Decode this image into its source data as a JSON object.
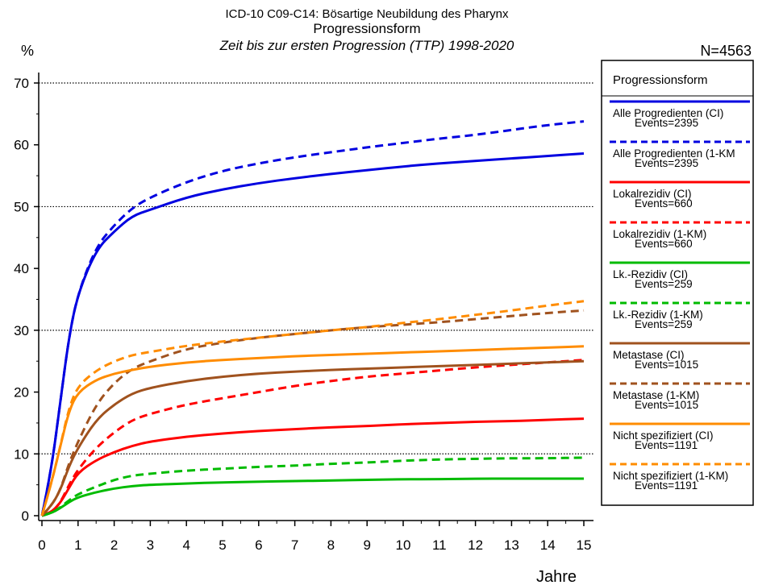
{
  "chart_data": {
    "type": "line",
    "title": "ICD-10 C09-C14: Bösartige Neubildung des Pharynx",
    "subtitle": "Progressionsform",
    "subtitle2": "Zeit bis zur ersten Progression (TTP) 1998-2020",
    "ylabel": "%",
    "xlabel": "Jahre",
    "n_label": "N=4563",
    "xlim": [
      0,
      15
    ],
    "ylim": [
      0,
      70
    ],
    "x_ticks": [
      "0",
      "1",
      "2",
      "3",
      "4",
      "5",
      "6",
      "7",
      "8",
      "9",
      "10",
      "11",
      "12",
      "13",
      "14",
      "15"
    ],
    "y_ticks": [
      "0",
      "10",
      "20",
      "30",
      "40",
      "50",
      "60",
      "70"
    ],
    "grid": "horizontal dotted at 10, 30, 50, 70",
    "legend_title": "Progressionsform",
    "legend_position": "right",
    "x": [
      0,
      0.25,
      0.5,
      0.75,
      1,
      1.5,
      2,
      2.5,
      3,
      4,
      5,
      6,
      7,
      8,
      9,
      10,
      11,
      12,
      13,
      14,
      15
    ],
    "series": [
      {
        "name": "Alle Progredienten (CI)",
        "events": "Events=2395",
        "color": "#0000e0",
        "dash": false,
        "values": [
          0,
          7,
          18,
          29,
          36,
          43,
          46,
          48.5,
          49.5,
          51.5,
          52.8,
          53.8,
          54.6,
          55.3,
          55.9,
          56.5,
          57,
          57.4,
          57.8,
          58.2,
          58.6
        ]
      },
      {
        "name": "Alle Progredienten (1-KM",
        "events": "Events=2395",
        "color": "#0000e0",
        "dash": true,
        "values": [
          0,
          7,
          18,
          29,
          36,
          43.5,
          47,
          49.8,
          51.5,
          54,
          55.8,
          57,
          58,
          58.8,
          59.6,
          60.3,
          61,
          61.6,
          62.4,
          63.2,
          63.8
        ]
      },
      {
        "name": "Lokalrezidiv (CI)",
        "events": "Events=660",
        "color": "#ff0000",
        "dash": false,
        "values": [
          0,
          0.5,
          2,
          4.5,
          7,
          9,
          10.3,
          11.3,
          12,
          12.8,
          13.3,
          13.7,
          14,
          14.3,
          14.5,
          14.8,
          15,
          15.2,
          15.3,
          15.5,
          15.7
        ]
      },
      {
        "name": "Lokalrezidiv (1-KM)",
        "events": "Events=660",
        "color": "#ff0000",
        "dash": true,
        "values": [
          0,
          0.5,
          2,
          5,
          7.5,
          11,
          13.5,
          15.5,
          16.5,
          18,
          19,
          20,
          21,
          21.8,
          22.5,
          23,
          23.5,
          24,
          24.4,
          24.8,
          25.2
        ]
      },
      {
        "name": "Lk.-Rezidiv (CI)",
        "events": "Events=259",
        "color": "#00bb00",
        "dash": false,
        "values": [
          0,
          0.4,
          1.2,
          2.2,
          3,
          3.8,
          4.4,
          4.8,
          5,
          5.2,
          5.4,
          5.5,
          5.6,
          5.7,
          5.8,
          5.9,
          5.9,
          6,
          6,
          6,
          6
        ]
      },
      {
        "name": "Lk.-Rezidiv (1-KM)",
        "events": "Events=259",
        "color": "#00bb00",
        "dash": true,
        "values": [
          0,
          0.4,
          1.3,
          2.5,
          3.5,
          4.7,
          5.8,
          6.5,
          6.8,
          7.3,
          7.6,
          7.9,
          8.1,
          8.4,
          8.6,
          8.9,
          9.1,
          9.2,
          9.3,
          9.3,
          9.4
        ]
      },
      {
        "name": "Metastase (CI)",
        "events": "Events=1015",
        "color": "#a0521e",
        "dash": false,
        "values": [
          0,
          1.5,
          4,
          8,
          11,
          15.5,
          18,
          19.8,
          20.7,
          21.8,
          22.5,
          23,
          23.3,
          23.6,
          23.8,
          24,
          24.2,
          24.4,
          24.6,
          24.8,
          25
        ]
      },
      {
        "name": "Metastase (1-KM)",
        "events": "Events=1015",
        "color": "#a0521e",
        "dash": true,
        "values": [
          0,
          1.5,
          4,
          8.5,
          12,
          18,
          21.5,
          23.8,
          25,
          27,
          28,
          28.8,
          29.4,
          30,
          30.5,
          30.9,
          31.3,
          31.8,
          32.3,
          32.8,
          33.2
        ]
      },
      {
        "name": "Nicht spezifiziert (CI)",
        "events": "Events=1191",
        "color": "#ff8c00",
        "dash": false,
        "values": [
          0,
          5,
          11,
          17,
          20,
          22,
          23,
          23.6,
          24.1,
          24.8,
          25.2,
          25.5,
          25.8,
          26,
          26.2,
          26.4,
          26.6,
          26.8,
          27,
          27.2,
          27.4
        ]
      },
      {
        "name": "Nicht spezifiziert (1-KM)",
        "events": "Events=1191",
        "color": "#ff8c00",
        "dash": true,
        "values": [
          0,
          5,
          11,
          17.5,
          21,
          23.5,
          25,
          26,
          26.5,
          27.5,
          28.2,
          28.8,
          29.4,
          30,
          30.5,
          31.2,
          31.8,
          32.5,
          33.2,
          34,
          34.7
        ]
      }
    ]
  }
}
